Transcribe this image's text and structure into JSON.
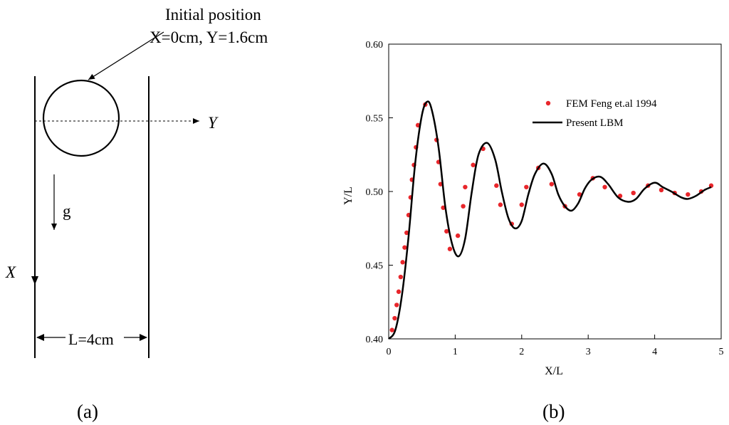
{
  "schematic": {
    "initial_position_line1": "Initial position",
    "initial_position_line2": "X=0cm, Y=1.6cm",
    "y_axis_label": "Y",
    "x_axis_label": "X",
    "gravity_label": "g",
    "width_label": "L=4cm",
    "panel_label": "(a)"
  },
  "panel_b_label": "(b)",
  "chart_data": {
    "type": "line",
    "title": "",
    "xlabel": "X/L",
    "ylabel": "Y/L",
    "xlim": [
      0,
      5
    ],
    "ylim": [
      0.4,
      0.6
    ],
    "x_ticks": [
      0,
      1,
      2,
      3,
      4,
      5
    ],
    "y_ticks": [
      0.4,
      0.45,
      0.5,
      0.55,
      0.6
    ],
    "x_tick_labels": [
      "0",
      "1",
      "2",
      "3",
      "4",
      "5"
    ],
    "y_tick_labels": [
      "0.40",
      "0.45",
      "0.50",
      "0.55",
      "0.60"
    ],
    "grid": false,
    "legend_position": "top-right",
    "series": [
      {
        "name": "FEM Feng et.al 1994",
        "style": "scatter",
        "color": "#e8262b",
        "points": [
          [
            0.05,
            0.406
          ],
          [
            0.09,
            0.414
          ],
          [
            0.12,
            0.423
          ],
          [
            0.15,
            0.432
          ],
          [
            0.18,
            0.442
          ],
          [
            0.21,
            0.452
          ],
          [
            0.24,
            0.462
          ],
          [
            0.27,
            0.472
          ],
          [
            0.3,
            0.484
          ],
          [
            0.33,
            0.496
          ],
          [
            0.35,
            0.508
          ],
          [
            0.38,
            0.518
          ],
          [
            0.41,
            0.53
          ],
          [
            0.44,
            0.545
          ],
          [
            0.55,
            0.559
          ],
          [
            0.72,
            0.535
          ],
          [
            0.75,
            0.52
          ],
          [
            0.78,
            0.505
          ],
          [
            0.82,
            0.489
          ],
          [
            0.87,
            0.473
          ],
          [
            0.92,
            0.461
          ],
          [
            1.04,
            0.47
          ],
          [
            1.12,
            0.49
          ],
          [
            1.15,
            0.503
          ],
          [
            1.27,
            0.518
          ],
          [
            1.42,
            0.529
          ],
          [
            1.62,
            0.504
          ],
          [
            1.68,
            0.491
          ],
          [
            1.85,
            0.478
          ],
          [
            2.0,
            0.491
          ],
          [
            2.07,
            0.503
          ],
          [
            2.25,
            0.516
          ],
          [
            2.45,
            0.505
          ],
          [
            2.65,
            0.49
          ],
          [
            2.87,
            0.498
          ],
          [
            3.07,
            0.509
          ],
          [
            3.25,
            0.503
          ],
          [
            3.48,
            0.497
          ],
          [
            3.68,
            0.499
          ],
          [
            3.9,
            0.504
          ],
          [
            4.1,
            0.501
          ],
          [
            4.3,
            0.499
          ],
          [
            4.5,
            0.498
          ],
          [
            4.7,
            0.5
          ],
          [
            4.85,
            0.504
          ]
        ]
      },
      {
        "name": "Present LBM",
        "style": "line",
        "color": "#000000",
        "points": [
          [
            0.0,
            0.4
          ],
          [
            0.1,
            0.406
          ],
          [
            0.2,
            0.43
          ],
          [
            0.3,
            0.47
          ],
          [
            0.4,
            0.52
          ],
          [
            0.5,
            0.552
          ],
          [
            0.58,
            0.561
          ],
          [
            0.65,
            0.555
          ],
          [
            0.75,
            0.53
          ],
          [
            0.85,
            0.49
          ],
          [
            0.95,
            0.465
          ],
          [
            1.05,
            0.456
          ],
          [
            1.15,
            0.468
          ],
          [
            1.25,
            0.5
          ],
          [
            1.35,
            0.525
          ],
          [
            1.48,
            0.533
          ],
          [
            1.6,
            0.522
          ],
          [
            1.7,
            0.5
          ],
          [
            1.8,
            0.482
          ],
          [
            1.9,
            0.475
          ],
          [
            2.0,
            0.48
          ],
          [
            2.1,
            0.498
          ],
          [
            2.2,
            0.512
          ],
          [
            2.33,
            0.519
          ],
          [
            2.45,
            0.512
          ],
          [
            2.55,
            0.498
          ],
          [
            2.65,
            0.49
          ],
          [
            2.75,
            0.487
          ],
          [
            2.85,
            0.492
          ],
          [
            2.95,
            0.502
          ],
          [
            3.05,
            0.508
          ],
          [
            3.18,
            0.51
          ],
          [
            3.3,
            0.505
          ],
          [
            3.45,
            0.496
          ],
          [
            3.6,
            0.493
          ],
          [
            3.72,
            0.495
          ],
          [
            3.85,
            0.502
          ],
          [
            4.0,
            0.506
          ],
          [
            4.12,
            0.503
          ],
          [
            4.25,
            0.5
          ],
          [
            4.4,
            0.496
          ],
          [
            4.5,
            0.495
          ],
          [
            4.62,
            0.497
          ],
          [
            4.75,
            0.501
          ],
          [
            4.85,
            0.503
          ]
        ]
      }
    ]
  }
}
